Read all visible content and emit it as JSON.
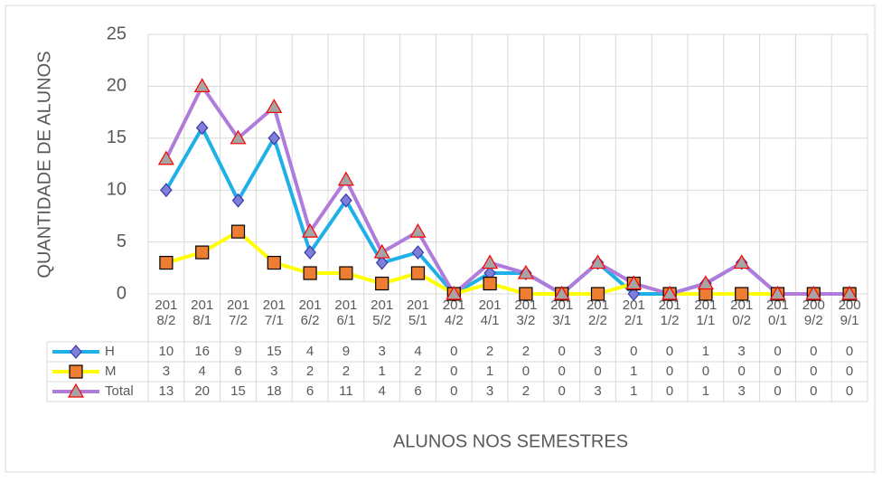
{
  "chart_data": {
    "type": "line",
    "ylabel": "QUANTIDADE DE ALUNOS",
    "xlabel": "ALUNOS NOS SEMESTRES",
    "categories": [
      "2018/2",
      "2018/1",
      "2017/2",
      "2017/1",
      "2016/2",
      "2016/1",
      "2015/2",
      "2015/1",
      "2014/2",
      "2014/1",
      "2013/2",
      "2013/1",
      "2012/2",
      "2012/1",
      "2011/2",
      "2011/1",
      "2010/2",
      "2010/1",
      "2009/2",
      "2009/1"
    ],
    "series": [
      {
        "name": "H",
        "color": "#1fb0e8",
        "marker": "diamond",
        "marker_fill": "#7f7fd6",
        "marker_edge": "#3a3ab0",
        "values": [
          10,
          16,
          9,
          15,
          4,
          9,
          3,
          4,
          0,
          2,
          2,
          0,
          3,
          0,
          0,
          1,
          3,
          0,
          0,
          0
        ]
      },
      {
        "name": "M",
        "color": "#ffff00",
        "marker": "square",
        "marker_fill": "#ed7d31",
        "marker_edge": "#000000",
        "values": [
          3,
          4,
          6,
          3,
          2,
          2,
          1,
          2,
          0,
          1,
          0,
          0,
          0,
          1,
          0,
          0,
          0,
          0,
          0,
          0
        ]
      },
      {
        "name": "Total",
        "color": "#b07cdb",
        "marker": "triangle",
        "marker_fill": "#a5a5a5",
        "marker_edge": "#ff0000",
        "values": [
          13,
          20,
          15,
          18,
          6,
          11,
          4,
          6,
          0,
          3,
          2,
          0,
          3,
          1,
          0,
          1,
          3,
          0,
          0,
          0
        ]
      }
    ],
    "ylim": [
      0,
      25
    ],
    "yticks": [
      0,
      5,
      10,
      15,
      20,
      25
    ],
    "grid": true,
    "data_table": true
  }
}
